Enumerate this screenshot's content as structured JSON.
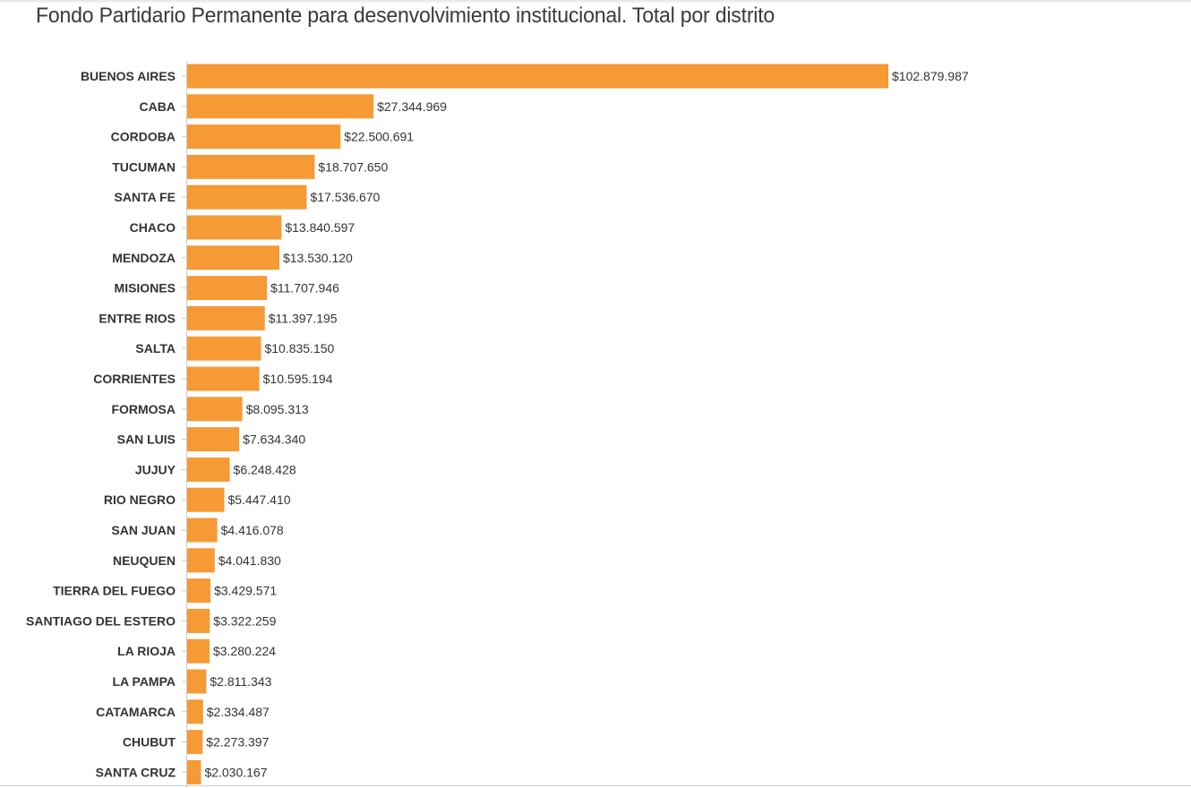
{
  "title": "Fondo Partidario Permanente para desenvolvimiento institucional. Total por distrito",
  "colors": {
    "bar": "#f59a35",
    "text": "#333333",
    "axis": "#cccccc"
  },
  "chart_data": {
    "type": "bar",
    "orientation": "horizontal",
    "title": "Fondo Partidario Permanente para desenvolvimiento institucional. Total por distrito",
    "xlabel": "",
    "ylabel": "",
    "grid": false,
    "categories": [
      "BUENOS AIRES",
      "CABA",
      "CORDOBA",
      "TUCUMAN",
      "SANTA FE",
      "CHACO",
      "MENDOZA",
      "MISIONES",
      "ENTRE RIOS",
      "SALTA",
      "CORRIENTES",
      "FORMOSA",
      "SAN LUIS",
      "JUJUY",
      "RIO NEGRO",
      "SAN JUAN",
      "NEUQUEN",
      "TIERRA DEL FUEGO",
      "SANTIAGO DEL ESTERO",
      "LA RIOJA",
      "LA PAMPA",
      "CATAMARCA",
      "CHUBUT",
      "SANTA CRUZ"
    ],
    "values": [
      102879987,
      27344969,
      22500691,
      18707650,
      17536670,
      13840597,
      13530120,
      11707946,
      11397195,
      10835150,
      10595194,
      8095313,
      7634340,
      6248428,
      5447410,
      4416078,
      4041830,
      3429571,
      3322259,
      3280224,
      2811343,
      2334487,
      2273397,
      2030167
    ],
    "value_labels": [
      "$102.879.987",
      "$27.344.969",
      "$22.500.691",
      "$18.707.650",
      "$17.536.670",
      "$13.840.597",
      "$13.530.120",
      "$11.707.946",
      "$11.397.195",
      "$10.835.150",
      "$10.595.194",
      "$8.095.313",
      "$7.634.340",
      "$6.248.428",
      "$5.447.410",
      "$4.416.078",
      "$4.041.830",
      "$3.429.571",
      "$3.322.259",
      "$3.280.224",
      "$2.811.343",
      "$2.334.487",
      "$2.273.397",
      "$2.030.167"
    ]
  }
}
